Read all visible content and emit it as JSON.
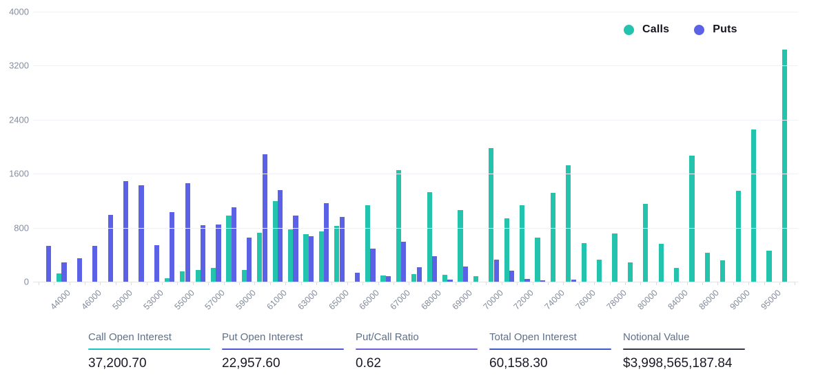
{
  "legend": {
    "items": [
      {
        "label": "Calls",
        "color": "#23C3AE"
      },
      {
        "label": "Puts",
        "color": "#5B62E5"
      }
    ]
  },
  "chart_data": {
    "type": "bar",
    "title": "",
    "xlabel": "",
    "ylabel": "",
    "ylim": [
      0,
      4000
    ],
    "yticks": [
      0,
      800,
      1600,
      2400,
      3200,
      4000
    ],
    "grid": true,
    "legend_position": "top-right",
    "categories": [
      "",
      "44000",
      "",
      "46000",
      "",
      "50000",
      "",
      "53000",
      "",
      "55000",
      "",
      "57000",
      "",
      "59000",
      "",
      "61000",
      "",
      "63000",
      "",
      "65000",
      "",
      "66000",
      "",
      "67000",
      "",
      "68000",
      "",
      "69000",
      "",
      "70000",
      "",
      "72000",
      "",
      "74000",
      "",
      "76000",
      "",
      "78000",
      "",
      "80000",
      "",
      "84000",
      "",
      "86000",
      "",
      "90000",
      "",
      "95000",
      ""
    ],
    "series": [
      {
        "name": "Calls",
        "color": "#23C3AE",
        "values": [
          0,
          120,
          0,
          0,
          0,
          0,
          0,
          0,
          50,
          152,
          169,
          202,
          975,
          169,
          723,
          1192,
          777,
          700,
          742,
          823,
          0,
          1133,
          94,
          1653,
          117,
          1324,
          100,
          1066,
          77,
          1978,
          939,
          1133,
          654,
          1315,
          1728,
          570,
          325,
          711,
          285,
          1156,
          565,
          202,
          1868,
          427,
          319,
          1350,
          2257,
          462,
          3440
        ]
      },
      {
        "name": "Puts",
        "color": "#5B62E5",
        "values": [
          528,
          286,
          343,
          528,
          993,
          1488,
          1424,
          545,
          1034,
          1455,
          832,
          849,
          1100,
          656,
          1890,
          1360,
          984,
          672,
          1159,
          956,
          134,
          486,
          77,
          587,
          211,
          378,
          26,
          221,
          0,
          328,
          161,
          43,
          20,
          0,
          27,
          0,
          0,
          0,
          0,
          0,
          0,
          0,
          0,
          0,
          0,
          0,
          0,
          0,
          0
        ]
      }
    ]
  },
  "stats": [
    {
      "label": "Call Open Interest",
      "value": "37,200.70",
      "underline_color": "#1BC6BE"
    },
    {
      "label": "Put Open Interest",
      "value": "22,957.60",
      "underline_color": "#4E57D9"
    },
    {
      "label": "Put/Call Ratio",
      "value": "0.62",
      "underline_color": "#6A5FD8"
    },
    {
      "label": "Total Open Interest",
      "value": "60,158.30",
      "underline_color": "#3E5BC8"
    },
    {
      "label": "Notional Value",
      "value": "$3,998,565,187.84",
      "underline_color": "#343947"
    }
  ]
}
